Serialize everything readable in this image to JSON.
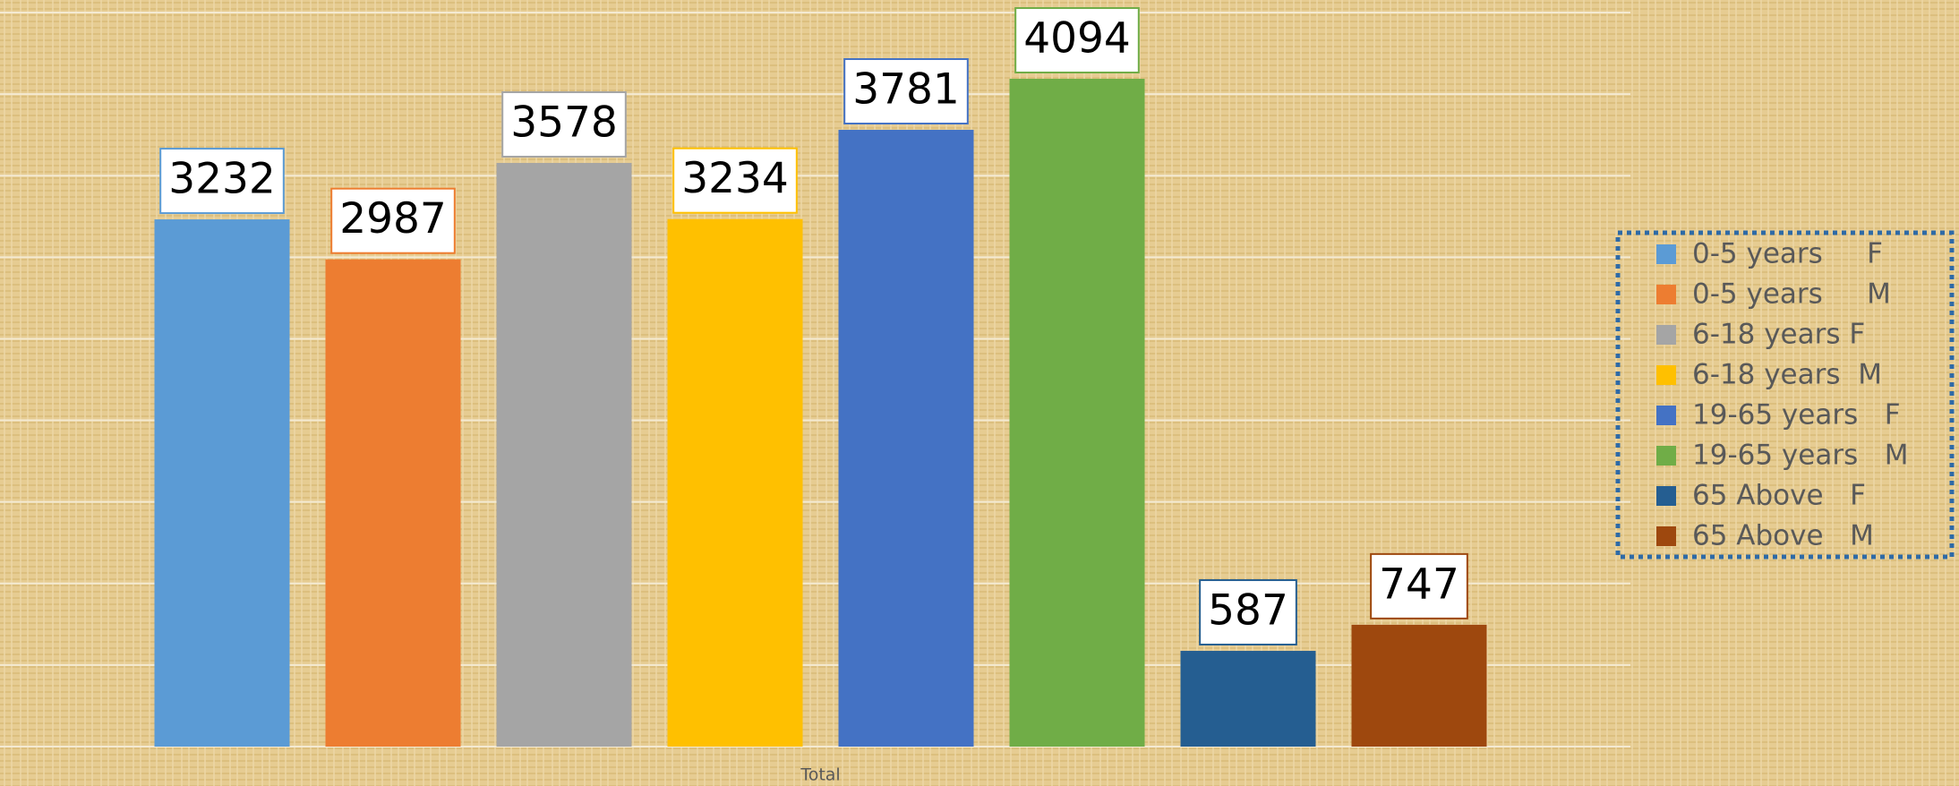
{
  "chart_data": {
    "type": "bar",
    "categories": [
      "Total"
    ],
    "series": [
      {
        "name": "0-5 years     F",
        "color": "#5b9bd5",
        "values": [
          3232
        ]
      },
      {
        "name": "0-5 years     M",
        "color": "#ed7d31",
        "values": [
          2987
        ]
      },
      {
        "name": "6-18 years F",
        "color": "#a5a5a5",
        "values": [
          3578
        ]
      },
      {
        "name": "6-18 years  M",
        "color": "#ffc000",
        "values": [
          3234
        ]
      },
      {
        "name": "19-65 years   F",
        "color": "#4472c4",
        "values": [
          3781
        ]
      },
      {
        "name": "19-65 years   M",
        "color": "#70ad47",
        "values": [
          4094
        ]
      },
      {
        "name": "65 Above   F",
        "color": "#255e91",
        "values": [
          587
        ]
      },
      {
        "name": "65 Above   M",
        "color": "#9e480e",
        "values": [
          747
        ]
      }
    ],
    "ylim": [
      0,
      4500
    ],
    "yticks": [
      0,
      500,
      1000,
      1500,
      2000,
      2500,
      3000,
      3500,
      4000,
      4500
    ],
    "grid": true,
    "legend": "right"
  }
}
